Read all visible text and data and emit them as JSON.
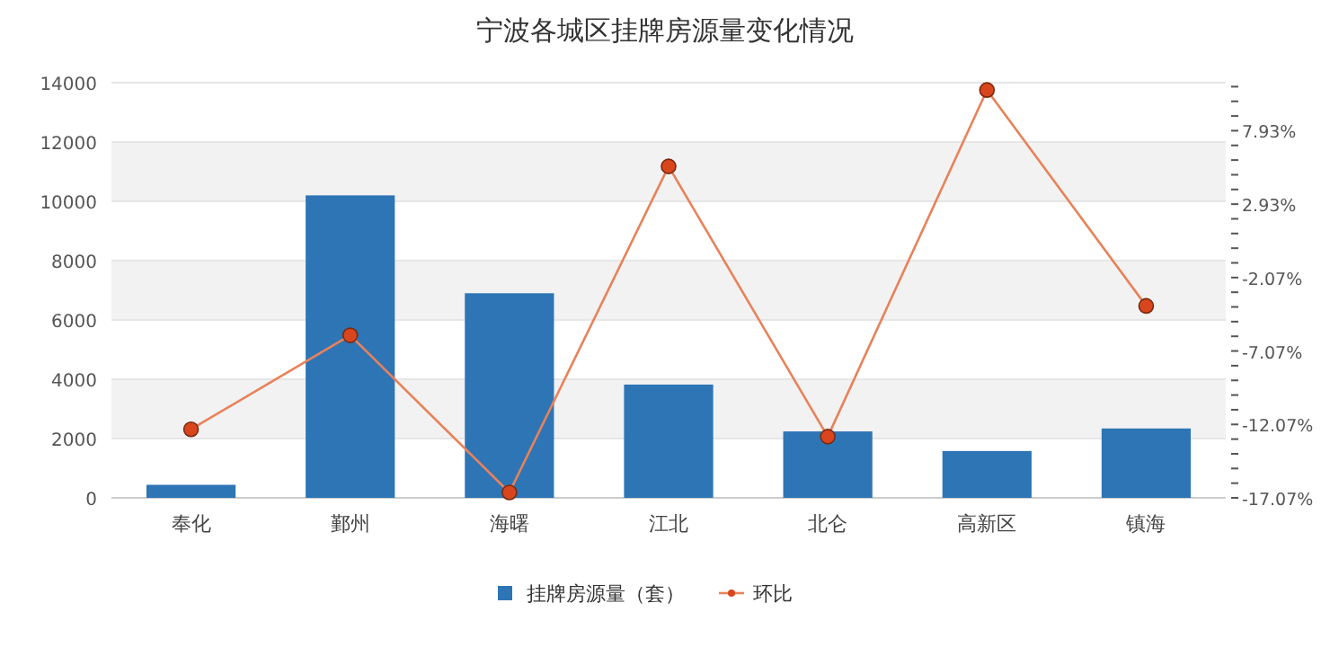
{
  "chart_data": {
    "type": "bar",
    "title": "宁波各城区挂牌房源量变化情况",
    "categories": [
      "奉化",
      "鄞州",
      "海曙",
      "江北",
      "北仑",
      "高新区",
      "镇海"
    ],
    "series": [
      {
        "name": "挂牌房源量（套）",
        "color": "#2e75b6",
        "values": [
          440,
          10200,
          6900,
          3820,
          2240,
          1580,
          2340
        ]
      },
      {
        "name": "环比",
        "type": "line",
        "axis": "y2",
        "color": "#e8825a",
        "marker": "circle",
        "values": [
          -12.4,
          -6.0,
          -16.7,
          5.5,
          -12.9,
          10.7,
          -4.0
        ]
      }
    ],
    "ylim": [
      0,
      14000
    ],
    "yticks": [
      0,
      2000,
      4000,
      6000,
      8000,
      10000,
      12000,
      14000
    ],
    "y2lim": [
      -17.07,
      11.2
    ],
    "y2ticks": [
      {
        "value": -17.07,
        "label": "-17.07%"
      },
      {
        "value": -16.07,
        "label": null
      },
      {
        "value": -15.07,
        "label": null
      },
      {
        "value": -14.07,
        "label": null
      },
      {
        "value": -13.07,
        "label": null
      },
      {
        "value": -12.07,
        "label": "-12.07%"
      },
      {
        "value": -11.07,
        "label": null
      },
      {
        "value": -10.07,
        "label": null
      },
      {
        "value": -9.07,
        "label": null
      },
      {
        "value": -8.07,
        "label": null
      },
      {
        "value": -7.07,
        "label": "-7.07%"
      },
      {
        "value": -6.07,
        "label": null
      },
      {
        "value": -5.07,
        "label": null
      },
      {
        "value": -4.07,
        "label": null
      },
      {
        "value": -3.07,
        "label": null
      },
      {
        "value": -2.07,
        "label": "-2.07%"
      },
      {
        "value": -1.07,
        "label": null
      },
      {
        "value": -0.07,
        "label": null
      },
      {
        "value": 0.93,
        "label": null
      },
      {
        "value": 1.93,
        "label": null
      },
      {
        "value": 2.93,
        "label": "2.93%"
      },
      {
        "value": 3.93,
        "label": null
      },
      {
        "value": 4.93,
        "label": null
      },
      {
        "value": 5.93,
        "label": null
      },
      {
        "value": 6.93,
        "label": null
      },
      {
        "value": 7.93,
        "label": "7.93%"
      },
      {
        "value": 8.93,
        "label": null
      },
      {
        "value": 9.93,
        "label": null
      },
      {
        "value": 10.93,
        "label": null
      }
    ],
    "grid": "y",
    "legend": "bottom"
  }
}
